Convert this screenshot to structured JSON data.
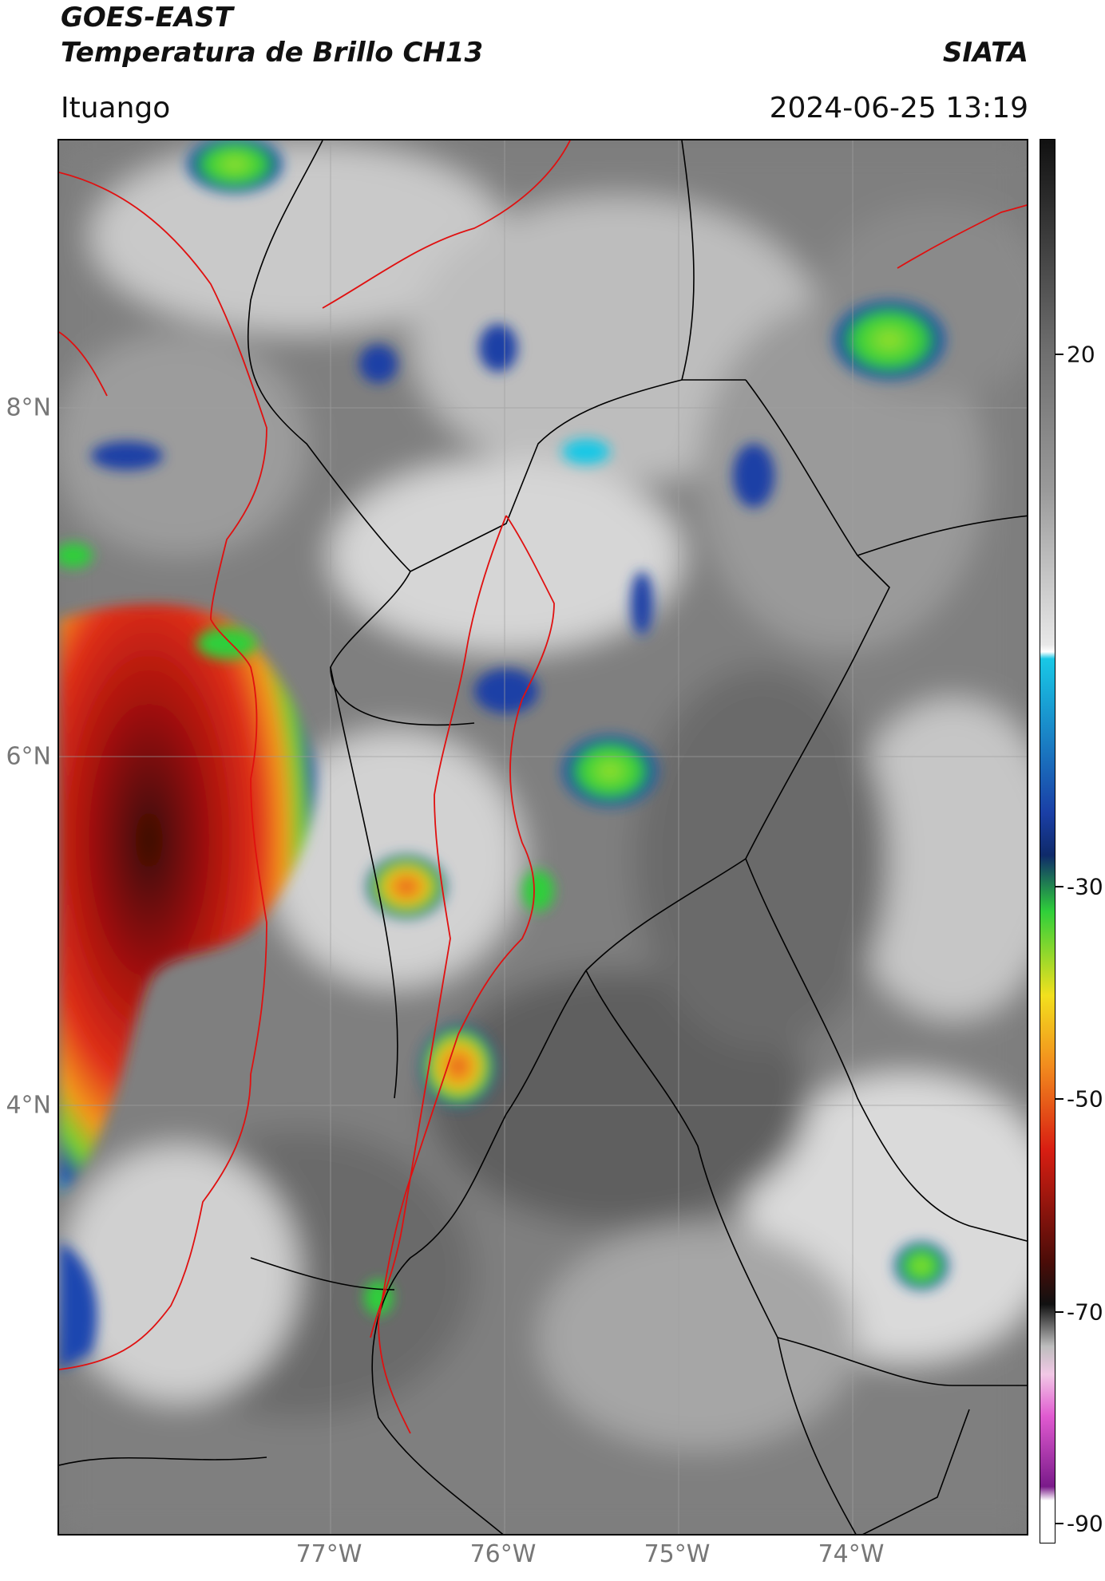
{
  "header": {
    "satellite": "GOES-EAST",
    "product": "Temperatura de Brillo CH13",
    "org": "SIATA",
    "region": "Ituango",
    "datetime": "2024-06-25 13:19"
  },
  "map": {
    "lat_labels": [
      "8°N",
      "6°N",
      "4°N"
    ],
    "lon_labels": [
      "77°W",
      "76°W",
      "75°W",
      "74°W"
    ]
  },
  "colorbar": {
    "labels": [
      "20",
      "-30",
      "-50",
      "-70",
      "-90"
    ],
    "colors": {
      "warm": "#6e6e6e",
      "neutral": "#e8e8e8",
      "cyan": "#19c8e6",
      "blue": "#1a3fa6",
      "green": "#2fcf3a",
      "yellow": "#f2e01e",
      "orange": "#f28c1e",
      "red": "#d81e12",
      "darkred": "#4a0c08",
      "black": "#111111",
      "pink": "#e05ad0",
      "purple": "#7a1a8a"
    }
  }
}
